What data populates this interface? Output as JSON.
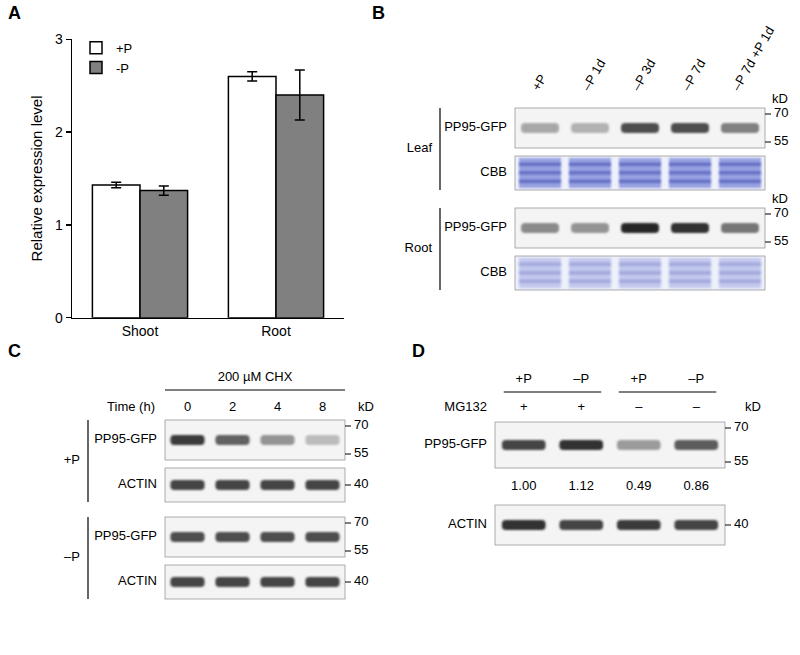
{
  "chart_data": {
    "type": "bar",
    "categories": [
      "Shoot",
      "Root"
    ],
    "series": [
      {
        "name": "+P",
        "color": "#ffffff",
        "values": [
          1.43,
          2.6
        ],
        "error": [
          0.03,
          0.05
        ]
      },
      {
        "name": "-P",
        "color": "#808080",
        "values": [
          1.37,
          2.4
        ],
        "error": [
          0.05,
          0.27
        ]
      }
    ],
    "y_label": "Relative expression level",
    "ylim": [
      0,
      3
    ],
    "yticks": [
      0,
      1,
      2,
      3
    ],
    "legend": "upper left",
    "grid": false
  },
  "figure": {
    "panel_labels": [
      "A",
      "B",
      "C",
      "D"
    ],
    "B": {
      "lanes": [
        "+P",
        "–P 1d",
        "–P 3d",
        "–P 7d",
        "–P 7d +P 1d"
      ],
      "unit": "kD",
      "groups": [
        {
          "name": "Leaf",
          "rows": [
            {
              "name": "PP95-GFP",
              "intensity": [
                0.35,
                0.3,
                0.8,
                0.8,
                0.55
              ],
              "markers": [
                70,
                55
              ]
            },
            {
              "name": "CBB",
              "stain": true,
              "intensity": [
                0.9,
                0.9,
                0.9,
                0.9,
                0.9
              ]
            }
          ]
        },
        {
          "name": "Root",
          "rows": [
            {
              "name": "PP95-GFP",
              "intensity": [
                0.5,
                0.45,
                1,
                0.95,
                0.6
              ],
              "markers": [
                70,
                55
              ]
            },
            {
              "name": "CBB",
              "stain": true,
              "intensity": [
                0.45,
                0.45,
                0.45,
                0.45,
                0.45
              ]
            }
          ]
        }
      ]
    },
    "C": {
      "treatment": "200 µM CHX",
      "lane_title": "Time (h)",
      "lanes": [
        0,
        2,
        4,
        8
      ],
      "unit": "kD",
      "groups": [
        {
          "name": "+P",
          "rows": [
            {
              "name": "PP95-GFP",
              "intensity": [
                0.9,
                0.7,
                0.45,
                0.25
              ],
              "markers": [
                70,
                55
              ]
            },
            {
              "name": "ACTIN",
              "intensity": [
                0.85,
                0.85,
                0.85,
                0.85
              ],
              "markers": [
                40
              ]
            }
          ]
        },
        {
          "name": "–P",
          "rows": [
            {
              "name": "PP95-GFP",
              "intensity": [
                0.8,
                0.8,
                0.8,
                0.8
              ],
              "markers": [
                70,
                55
              ]
            },
            {
              "name": "ACTIN",
              "intensity": [
                0.85,
                0.85,
                0.85,
                0.85
              ],
              "markers": [
                40
              ]
            }
          ]
        }
      ]
    },
    "D": {
      "lanes": [
        "+P",
        "–P",
        "+P",
        "–P"
      ],
      "treatment": "MG132",
      "treatment_signs": [
        "+",
        "+",
        "–",
        "–"
      ],
      "unit": "kD",
      "rows": [
        {
          "name": "PP95-GFP",
          "intensity": [
            1.0,
            1.12,
            0.49,
            0.86
          ],
          "value_labels": [
            "1.00",
            "1.12",
            "0.49",
            "0.86"
          ],
          "markers": [
            70,
            55
          ]
        },
        {
          "name": "ACTIN",
          "intensity": [
            0.95,
            0.85,
            0.9,
            0.85
          ],
          "markers": [
            40
          ]
        }
      ]
    }
  }
}
